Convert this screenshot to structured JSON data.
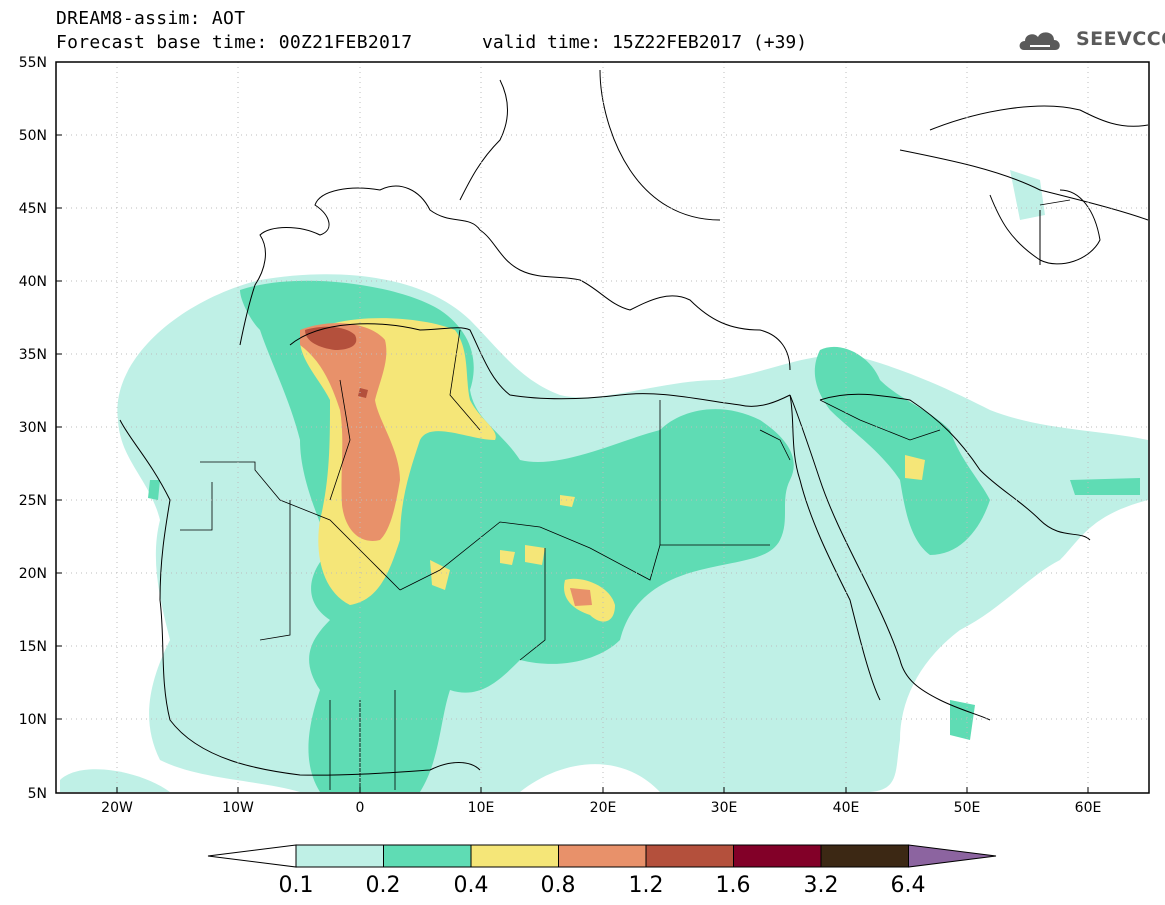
{
  "header": {
    "line1": "DREAM8-assim: AOT",
    "line2": "Forecast base time: 00Z21FEB2017",
    "line3": "valid time: 15Z22FEB2017 (+39)"
  },
  "logo": {
    "text": "SEEVCCC",
    "icon": "cloud-icon"
  },
  "map": {
    "lat_labels": [
      "55N",
      "50N",
      "45N",
      "40N",
      "35N",
      "30N",
      "25N",
      "20N",
      "15N",
      "10N",
      "5N"
    ],
    "lon_labels": [
      "20W",
      "10W",
      "0",
      "10E",
      "20E",
      "30E",
      "40E",
      "50E",
      "60E"
    ],
    "lat_range": [
      5,
      55
    ],
    "lon_range": [
      -25,
      65
    ],
    "grid": true
  },
  "colorbar": {
    "labels": [
      "0.1",
      "0.2",
      "0.4",
      "0.8",
      "1.2",
      "1.6",
      "3.2",
      "6.4"
    ],
    "colors": [
      "#ffffff",
      "#bff0e6",
      "#5fdcb4",
      "#f5e678",
      "#e8916a",
      "#b4503c",
      "#820028",
      "#3c2814",
      "#8c64a0"
    ]
  }
}
